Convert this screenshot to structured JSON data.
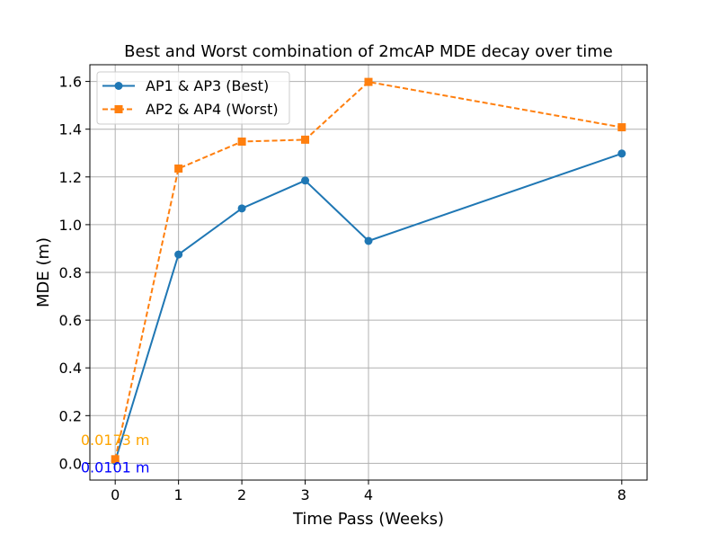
{
  "chart_data": {
    "type": "line",
    "title": "Best and Worst combination of 2mcAP MDE decay over time",
    "xlabel": "Time Pass (Weeks)",
    "ylabel": "MDE (m)",
    "x": [
      0,
      1,
      2,
      3,
      4,
      8
    ],
    "xticks": [
      "0",
      "1",
      "2",
      "3",
      "4",
      "8"
    ],
    "yticks": [
      "0.0",
      "0.2",
      "0.4",
      "0.6",
      "0.8",
      "1.0",
      "1.2",
      "1.4",
      "1.6"
    ],
    "xlim": [
      -0.4,
      8.4
    ],
    "ylim": [
      -0.07,
      1.67
    ],
    "grid": true,
    "legend_position": "top-left",
    "series": [
      {
        "name": "AP1 & AP3 (Best)",
        "values": [
          0.0101,
          0.875,
          1.068,
          1.185,
          0.932,
          1.298
        ],
        "color": "#1f77b4",
        "marker": "circle",
        "line_style": "solid"
      },
      {
        "name": "AP2 & AP4 (Worst)",
        "values": [
          0.0173,
          1.235,
          1.348,
          1.356,
          1.598,
          1.408
        ],
        "color": "#ff7f0e",
        "marker": "square",
        "line_style": "dashed"
      }
    ],
    "annotations": [
      {
        "text": "0.0173 m",
        "x": 0,
        "y": 0.0173,
        "color": "#ffa500"
      },
      {
        "text": "0.0101 m",
        "x": 0,
        "y": 0.0101,
        "color": "#0000ff"
      }
    ]
  }
}
